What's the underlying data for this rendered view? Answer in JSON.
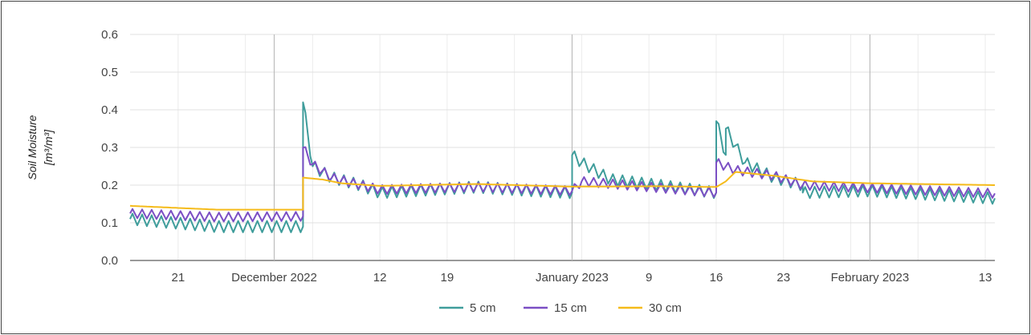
{
  "chart_data": {
    "type": "line",
    "title": "",
    "ylabel": "Soil Moisture",
    "yunit": "[m³/m³]",
    "xlabel": "",
    "ylim": [
      0,
      0.6
    ],
    "yticks": [
      0.0,
      0.1,
      0.2,
      0.3,
      0.4,
      0.5,
      0.6
    ],
    "ytick_labels": [
      "0.0",
      "0.1",
      "0.2",
      "0.3",
      "0.4",
      "0.5",
      "0.6"
    ],
    "xlim": [
      "2022-11-16",
      "2023-02-14"
    ],
    "xticks": [
      {
        "date": "2022-11-21",
        "label": "21",
        "major": false
      },
      {
        "date": "2022-12-01",
        "label": "December 2022",
        "major": true
      },
      {
        "date": "2022-12-12",
        "label": "12",
        "major": false
      },
      {
        "date": "2022-12-19",
        "label": "19",
        "major": false
      },
      {
        "date": "2023-01-01",
        "label": "January 2023",
        "major": true
      },
      {
        "date": "2023-01-09",
        "label": "9",
        "major": false
      },
      {
        "date": "2023-01-16",
        "label": "16",
        "major": false
      },
      {
        "date": "2023-01-23",
        "label": "23",
        "major": false
      },
      {
        "date": "2023-02-01",
        "label": "February 2023",
        "major": true
      },
      {
        "date": "2023-02-13",
        "label": "13",
        "major": false
      }
    ],
    "grid": true,
    "legend_position": "bottom",
    "series": [
      {
        "name": "5 cm",
        "color": "#3f9d9b",
        "daily_cycle": 0.015,
        "points": [
          [
            "2022-11-16",
            0.11
          ],
          [
            "2022-11-25",
            0.09
          ],
          [
            "2022-12-04",
            0.09
          ],
          [
            "2022-12-04",
            0.42
          ],
          [
            "2022-12-05",
            0.25
          ],
          [
            "2022-12-07",
            0.22
          ],
          [
            "2022-12-10",
            0.2
          ],
          [
            "2022-12-12",
            0.18
          ],
          [
            "2022-12-22",
            0.195
          ],
          [
            "2022-12-28",
            0.185
          ],
          [
            "2023-01-01",
            0.18
          ],
          [
            "2023-01-01",
            0.28
          ],
          [
            "2023-01-02",
            0.26
          ],
          [
            "2023-01-05",
            0.215
          ],
          [
            "2023-01-10",
            0.2
          ],
          [
            "2023-01-16",
            0.18
          ],
          [
            "2023-01-16",
            0.37
          ],
          [
            "2023-01-17",
            0.28
          ],
          [
            "2023-01-17",
            0.35
          ],
          [
            "2023-01-19",
            0.26
          ],
          [
            "2023-01-22",
            0.22
          ],
          [
            "2023-01-25",
            0.2
          ],
          [
            "2023-01-25",
            0.18
          ],
          [
            "2023-02-01",
            0.185
          ],
          [
            "2023-02-14",
            0.165
          ]
        ]
      },
      {
        "name": "15 cm",
        "color": "#7b4fc4",
        "daily_cycle": 0.012,
        "points": [
          [
            "2022-11-16",
            0.125
          ],
          [
            "2022-11-25",
            0.115
          ],
          [
            "2022-12-04",
            0.117
          ],
          [
            "2022-12-04",
            0.3
          ],
          [
            "2022-12-05",
            0.255
          ],
          [
            "2022-12-07",
            0.22
          ],
          [
            "2022-12-10",
            0.2
          ],
          [
            "2022-12-12",
            0.188
          ],
          [
            "2022-12-22",
            0.195
          ],
          [
            "2023-01-01",
            0.185
          ],
          [
            "2023-01-02",
            0.21
          ],
          [
            "2023-01-10",
            0.193
          ],
          [
            "2023-01-16",
            0.18
          ],
          [
            "2023-01-16",
            0.26
          ],
          [
            "2023-01-18",
            0.24
          ],
          [
            "2023-01-22",
            0.225
          ],
          [
            "2023-01-25",
            0.2
          ],
          [
            "2023-02-14",
            0.178
          ]
        ]
      },
      {
        "name": "30 cm",
        "color": "#f5bb1a",
        "daily_cycle": 0.0,
        "points": [
          [
            "2022-11-16",
            0.145
          ],
          [
            "2022-11-25",
            0.135
          ],
          [
            "2022-12-04",
            0.135
          ],
          [
            "2022-12-04",
            0.22
          ],
          [
            "2022-12-06",
            0.215
          ],
          [
            "2022-12-08",
            0.205
          ],
          [
            "2022-12-12",
            0.198
          ],
          [
            "2022-12-22",
            0.203
          ],
          [
            "2023-01-01",
            0.196
          ],
          [
            "2023-01-10",
            0.197
          ],
          [
            "2023-01-16",
            0.195
          ],
          [
            "2023-01-17",
            0.21
          ],
          [
            "2023-01-18",
            0.235
          ],
          [
            "2023-01-22",
            0.225
          ],
          [
            "2023-01-26",
            0.21
          ],
          [
            "2023-02-01",
            0.205
          ],
          [
            "2023-02-14",
            0.2
          ]
        ]
      }
    ]
  }
}
